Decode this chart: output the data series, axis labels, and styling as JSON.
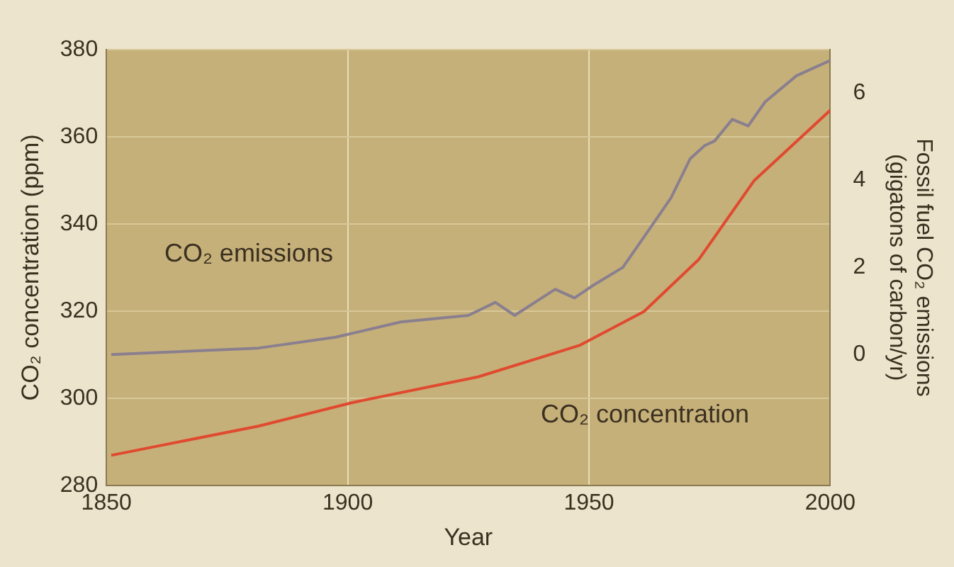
{
  "chart_data": {
    "type": "line",
    "xlabel": "Year",
    "ylabel": "CO₂ concentration (ppm)",
    "y2label": "Fossil fuel CO₂ emissions\n(gigatons of carbon/yr)",
    "xlim": [
      1850,
      2000
    ],
    "xticks": [
      1850,
      1900,
      1950,
      2000
    ],
    "ylim": [
      280,
      380
    ],
    "yticks": [
      280,
      300,
      320,
      340,
      360,
      380
    ],
    "y2lim": [
      -3,
      7
    ],
    "y2ticks": [
      0,
      2,
      4,
      6
    ],
    "grid": true,
    "legend": false,
    "marker": "none",
    "line_style": "solid",
    "series": [
      {
        "name": "CO₂ emissions",
        "color": "#8a7f8e",
        "axis": "y2",
        "x": [
          1851,
          1881.5,
          1897.5,
          1911,
          1925,
          1930.6,
          1934.6,
          1943,
          1947,
          1951,
          1957,
          1961.4,
          1967,
          1971,
          1974,
          1976,
          1979.7,
          1983,
          1986.5,
          1993,
          2000
        ],
        "values": [
          0.0,
          0.15,
          0.4,
          0.75,
          0.9,
          1.2,
          0.9,
          1.5,
          1.3,
          1.6,
          2.0,
          2.7,
          3.6,
          4.5,
          4.8,
          4.9,
          5.4,
          5.25,
          5.8,
          6.4,
          6.75
        ]
      },
      {
        "name": "CO₂ concentration",
        "color": "#e04a2f",
        "x": [
          1851,
          1881.5,
          1901,
          1927,
          1948,
          1961.4,
          1972.8,
          1984.2,
          2000
        ],
        "values": [
          286.9,
          293.6,
          299,
          304.9,
          312.1,
          319.9,
          331.9,
          349.9,
          366.1
        ]
      }
    ]
  }
}
